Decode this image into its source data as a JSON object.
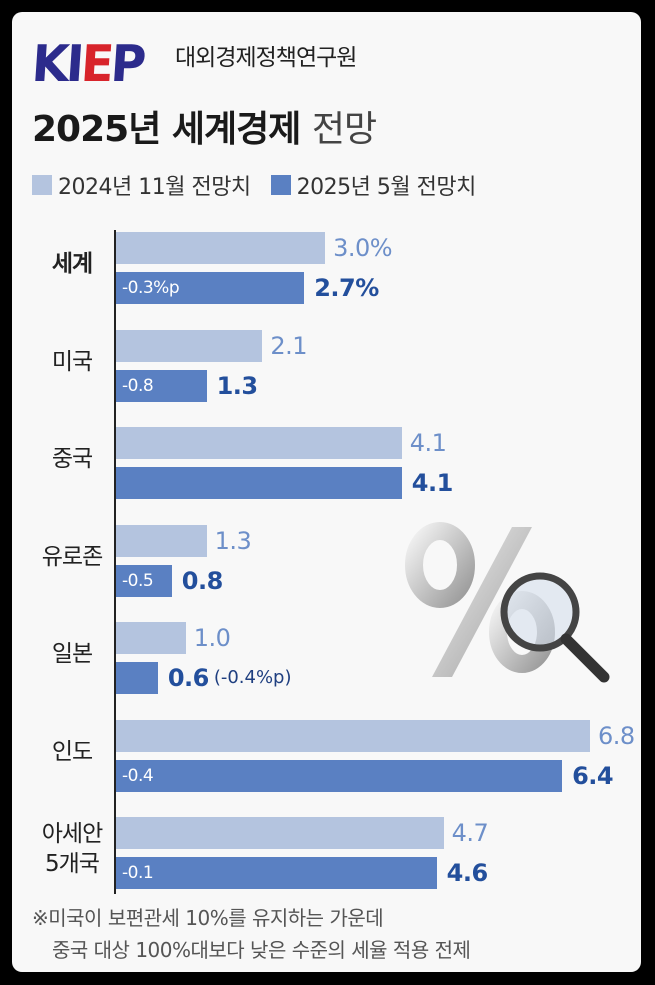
{
  "header": {
    "logo_text": "KIEP",
    "org_name": "대외경제정책연구원",
    "title_bold": "2025년 세계경제",
    "title_light": "전망"
  },
  "legend": [
    {
      "label": "2024년 11월 전망치",
      "color": "#b4c4df"
    },
    {
      "label": "2025년 5월 전망치",
      "color": "#5a80c2"
    }
  ],
  "chart_data": {
    "type": "bar",
    "orientation": "horizontal",
    "categories": [
      "세계",
      "미국",
      "중국",
      "유로존",
      "일본",
      "인도",
      "아세안 5개국"
    ],
    "series": [
      {
        "name": "2024년 11월 전망치",
        "values": [
          3.0,
          2.1,
          4.1,
          1.3,
          1.0,
          6.8,
          4.7
        ]
      },
      {
        "name": "2025년 5월 전망치",
        "values": [
          2.7,
          1.3,
          4.1,
          0.8,
          0.6,
          6.4,
          4.6
        ]
      }
    ],
    "prev_labels": [
      "3.0%",
      "2.1",
      "4.1",
      "1.3",
      "1.0",
      "6.8",
      "4.7"
    ],
    "cur_labels": [
      "2.7%",
      "1.3",
      "4.1",
      "0.8",
      "0.6",
      "6.4",
      "4.6"
    ],
    "change_labels": [
      "-0.3%p",
      "-0.8",
      "",
      "-0.5",
      "",
      "-0.4",
      "-0.1"
    ],
    "side_notes": [
      "",
      "",
      "",
      "",
      "(-0.4%p)",
      "",
      ""
    ],
    "xlim": [
      0,
      6.8
    ]
  },
  "category_lines": [
    [
      "세계"
    ],
    [
      "미국"
    ],
    [
      "중국"
    ],
    [
      "유로존"
    ],
    [
      "일본"
    ],
    [
      "인도"
    ],
    [
      "아세안",
      "5개국"
    ]
  ],
  "footnote": {
    "line1": "※미국이 보편관세 10%를 유지하는 가운데",
    "line2": "중국 대상 100%대보다 낮은 수준의 세율 적용 전제"
  }
}
